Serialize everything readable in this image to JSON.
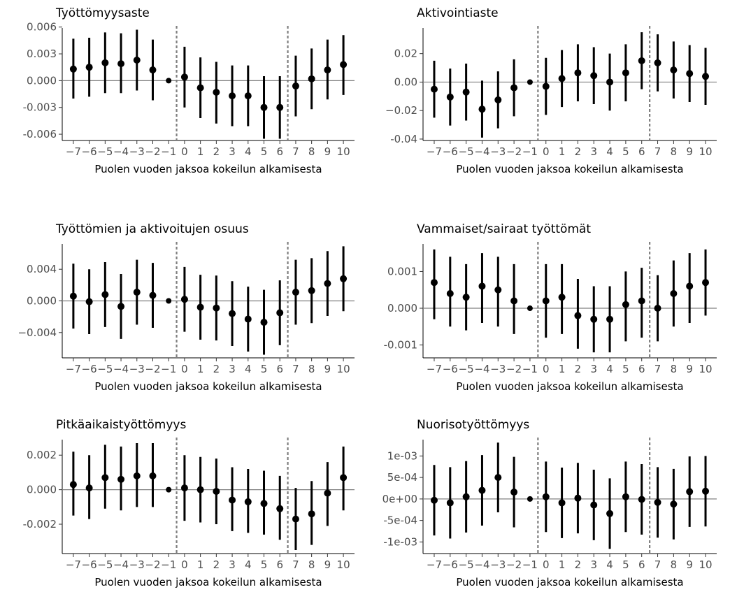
{
  "chart_data": [
    {
      "type": "scatter",
      "title": "Työttömyysaste",
      "xlabel": "Puolen vuoden jaksoa kokeilun alkamisesta",
      "ylabel": "",
      "x": [
        -7,
        -6,
        -5,
        -4,
        -3,
        -2,
        -1,
        0,
        1,
        2,
        3,
        4,
        5,
        6,
        7,
        8,
        9,
        10
      ],
      "xtick_labels": [
        "−7",
        "−6",
        "−5",
        "−4",
        "−3",
        "−2",
        "−1",
        "0",
        "1",
        "2",
        "3",
        "4",
        "5",
        "6",
        "7",
        "8",
        "9",
        "10"
      ],
      "estimate": [
        0.0013,
        0.0015,
        0.002,
        0.0019,
        0.0023,
        0.0012,
        0.0,
        0.0004,
        -0.0008,
        -0.0013,
        -0.0017,
        -0.0017,
        -0.003,
        -0.003,
        -0.0006,
        0.0002,
        0.0012,
        0.0018
      ],
      "ci_low": [
        -0.002,
        -0.0018,
        -0.0014,
        -0.0014,
        -0.0011,
        -0.0022,
        0.0,
        -0.003,
        -0.0042,
        -0.0048,
        -0.0051,
        -0.0051,
        -0.0065,
        -0.0065,
        -0.004,
        -0.0032,
        -0.0021,
        -0.0016
      ],
      "ci_high": [
        0.0047,
        0.0048,
        0.0054,
        0.0053,
        0.0057,
        0.0046,
        0.0,
        0.0038,
        0.0026,
        0.0021,
        0.0017,
        0.0017,
        0.0005,
        0.0005,
        0.0028,
        0.0036,
        0.0046,
        0.0051
      ],
      "yticks": [
        0.006,
        0.003,
        0.0,
        -0.003,
        -0.006
      ],
      "ytick_labels": [
        "0.006",
        "0.003",
        "0.000",
        "-0.003",
        "-0.006"
      ],
      "ylim": [
        -0.0067,
        0.0059
      ],
      "xlim": [
        -7.7,
        10.7
      ],
      "vlines": [
        -0.5,
        6.5
      ],
      "hline": 0
    },
    {
      "type": "scatter",
      "title": "Aktivointiaste",
      "xlabel": "Puolen vuoden jaksoa kokeilun alkamisesta",
      "ylabel": "",
      "x": [
        -7,
        -6,
        -5,
        -4,
        -3,
        -2,
        -1,
        0,
        1,
        2,
        3,
        4,
        5,
        6,
        7,
        8,
        9,
        10
      ],
      "xtick_labels": [
        "−7",
        "−6",
        "−5",
        "−4",
        "−3",
        "−2",
        "−1",
        "0",
        "1",
        "2",
        "3",
        "4",
        "5",
        "6",
        "7",
        "8",
        "9",
        "10"
      ],
      "estimate": [
        -0.005,
        -0.0105,
        -0.007,
        -0.019,
        -0.0125,
        -0.004,
        0.0,
        -0.003,
        0.0025,
        0.0065,
        0.0045,
        0.0,
        0.0065,
        0.015,
        0.0135,
        0.0085,
        0.006,
        0.004
      ],
      "ci_low": [
        -0.025,
        -0.0305,
        -0.027,
        -0.039,
        -0.0325,
        -0.024,
        0.0,
        -0.023,
        -0.0175,
        -0.0135,
        -0.0155,
        -0.02,
        -0.0135,
        -0.005,
        -0.0065,
        -0.0115,
        -0.014,
        -0.016
      ],
      "ci_high": [
        0.015,
        0.0095,
        0.013,
        0.001,
        0.0075,
        0.016,
        0.0,
        0.017,
        0.0225,
        0.0265,
        0.0245,
        0.02,
        0.0265,
        0.035,
        0.0335,
        0.0285,
        0.026,
        0.024
      ],
      "yticks": [
        0.02,
        0.0,
        -0.02,
        -0.04
      ],
      "ytick_labels": [
        "0.02",
        "0.00",
        "−0.02",
        "-0.04"
      ],
      "ylim": [
        -0.041,
        0.038
      ],
      "xlim": [
        -7.7,
        10.7
      ],
      "vlines": [
        -0.5,
        6.5
      ],
      "hline": 0
    },
    {
      "type": "scatter",
      "title": "Työttömien ja aktivoitujen osuus",
      "xlabel": "Puolen vuoden jaksoa kokeilun alkamisesta",
      "ylabel": "",
      "x": [
        -7,
        -6,
        -5,
        -4,
        -3,
        -2,
        -1,
        0,
        1,
        2,
        3,
        4,
        5,
        6,
        7,
        8,
        9,
        10
      ],
      "xtick_labels": [
        "−7",
        "−6",
        "−5",
        "−4",
        "−3",
        "−2",
        "−1",
        "0",
        "1",
        "2",
        "3",
        "4",
        "5",
        "6",
        "7",
        "8",
        "9",
        "10"
      ],
      "estimate": [
        0.0006,
        -0.0001,
        0.0008,
        -0.0007,
        0.0011,
        0.0007,
        0.0,
        0.0002,
        -0.0008,
        -0.0009,
        -0.0016,
        -0.0023,
        -0.0027,
        -0.0015,
        0.0011,
        0.0013,
        0.0022,
        0.0028
      ],
      "ci_low": [
        -0.0035,
        -0.0042,
        -0.0033,
        -0.0048,
        -0.003,
        -0.0034,
        0.0,
        -0.0039,
        -0.0049,
        -0.005,
        -0.0057,
        -0.0064,
        -0.0068,
        -0.0056,
        -0.003,
        -0.0028,
        -0.0019,
        -0.0013
      ],
      "ci_high": [
        0.0047,
        0.004,
        0.0049,
        0.0034,
        0.0052,
        0.0048,
        0.0,
        0.0043,
        0.0033,
        0.0032,
        0.0025,
        0.0018,
        0.0014,
        0.0026,
        0.0052,
        0.0054,
        0.0063,
        0.0069
      ],
      "yticks": [
        0.004,
        0.0,
        -0.004
      ],
      "ytick_labels": [
        "0.004",
        "0.000",
        "−0.004"
      ],
      "ylim": [
        -0.0072,
        0.0072
      ],
      "xlim": [
        -7.7,
        10.7
      ],
      "vlines": [
        -0.5,
        6.5
      ],
      "hline": 0
    },
    {
      "type": "scatter",
      "title": "Vammaiset/sairaat työttömät",
      "xlabel": "Puolen vuoden jaksoa kokeilun alkamisesta",
      "ylabel": "",
      "x": [
        -7,
        -6,
        -5,
        -4,
        -3,
        -2,
        -1,
        0,
        1,
        2,
        3,
        4,
        5,
        6,
        7,
        8,
        9,
        10
      ],
      "xtick_labels": [
        "−7",
        "−6",
        "−5",
        "−4",
        "−3",
        "−2",
        "−1",
        "0",
        "1",
        "2",
        "3",
        "4",
        "5",
        "6",
        "7",
        "8",
        "9",
        "10"
      ],
      "estimate": [
        0.0007,
        0.0004,
        0.0003,
        0.0006,
        0.0005,
        0.0002,
        0.0,
        0.0002,
        0.0003,
        -0.0002,
        -0.0003,
        -0.0003,
        0.0001,
        0.0002,
        0.0,
        0.0004,
        0.0006,
        0.0007
      ],
      "ci_low": [
        -0.0003,
        -0.0005,
        -0.0006,
        -0.0004,
        -0.0005,
        -0.0007,
        0.0,
        -0.0008,
        -0.0007,
        -0.0011,
        -0.0012,
        -0.0012,
        -0.0009,
        -0.0008,
        -0.0009,
        -0.0005,
        -0.0004,
        -0.0002
      ],
      "ci_high": [
        0.0016,
        0.0014,
        0.0012,
        0.0015,
        0.0014,
        0.0012,
        0.0,
        0.0012,
        0.0012,
        0.0008,
        0.0006,
        0.0006,
        0.001,
        0.0011,
        0.0009,
        0.0013,
        0.0015,
        0.0016
      ],
      "yticks": [
        0.001,
        0.0,
        -0.001
      ],
      "ytick_labels": [
        "0.001",
        "0.000",
        "-0.001"
      ],
      "ylim": [
        -0.00135,
        0.00175
      ],
      "xlim": [
        -7.7,
        10.7
      ],
      "vlines": [
        -0.5,
        6.5
      ],
      "hline": 0
    },
    {
      "type": "scatter",
      "title": "Pitkäaikaistyöttömyys",
      "xlabel": "Puolen vuoden jaksoa kokeilun alkamisesta",
      "ylabel": "",
      "x": [
        -7,
        -6,
        -5,
        -4,
        -3,
        -2,
        -1,
        0,
        1,
        2,
        3,
        4,
        5,
        6,
        7,
        8,
        9,
        10
      ],
      "xtick_labels": [
        "−7",
        "−6",
        "−5",
        "−4",
        "−3",
        "−2",
        "−1",
        "0",
        "1",
        "2",
        "3",
        "4",
        "5",
        "6",
        "7",
        "8",
        "9",
        "10"
      ],
      "estimate": [
        0.0003,
        0.0001,
        0.0007,
        0.0006,
        0.0008,
        0.0008,
        0.0,
        0.0001,
        0.0,
        -0.0001,
        -0.0006,
        -0.0007,
        -0.0008,
        -0.0011,
        -0.0017,
        -0.0014,
        -0.0002,
        0.0007
      ],
      "ci_low": [
        -0.0015,
        -0.0017,
        -0.0011,
        -0.0012,
        -0.001,
        -0.001,
        0.0,
        -0.0018,
        -0.0019,
        -0.002,
        -0.0024,
        -0.0025,
        -0.0026,
        -0.0029,
        -0.0035,
        -0.0032,
        -0.0021,
        -0.0012
      ],
      "ci_high": [
        0.0022,
        0.002,
        0.0026,
        0.0025,
        0.0027,
        0.0027,
        0.0,
        0.002,
        0.0019,
        0.0018,
        0.0013,
        0.0012,
        0.0011,
        0.0008,
        0.0001,
        0.0005,
        0.0016,
        0.0025
      ],
      "yticks": [
        0.002,
        0.0,
        -0.002
      ],
      "ytick_labels": [
        "0.002",
        "0.000",
        "-0.002"
      ],
      "ylim": [
        -0.0037,
        0.0029
      ],
      "xlim": [
        -7.7,
        10.7
      ],
      "vlines": [
        -0.5,
        6.5
      ],
      "hline": 0
    },
    {
      "type": "scatter",
      "title": "Nuorisotyöttömyys",
      "xlabel": "Puolen vuoden jaksoa kokeilun alkamisesta",
      "ylabel": "",
      "x": [
        -7,
        -6,
        -5,
        -4,
        -3,
        -2,
        -1,
        0,
        1,
        2,
        3,
        4,
        5,
        6,
        7,
        8,
        9,
        10
      ],
      "xtick_labels": [
        "−7",
        "−6",
        "−5",
        "−4",
        "−3",
        "−2",
        "−1",
        "0",
        "1",
        "2",
        "3",
        "4",
        "5",
        "6",
        "7",
        "8",
        "9",
        "10"
      ],
      "estimate": [
        -3e-05,
        -9e-05,
        5e-05,
        0.0002,
        0.0005,
        0.00016,
        0.0,
        5e-05,
        -9e-05,
        2e-05,
        -0.00014,
        -0.00034,
        5e-05,
        -1e-05,
        -8e-05,
        -0.00012,
        0.00017,
        0.00018
      ],
      "ci_low": [
        -0.00085,
        -0.00092,
        -0.00078,
        -0.00062,
        -0.00031,
        -0.00066,
        0.0,
        -0.00077,
        -0.00091,
        -0.0008,
        -0.00096,
        -0.00116,
        -0.00077,
        -0.00083,
        -0.0009,
        -0.00094,
        -0.00065,
        -0.00064
      ],
      "ci_high": [
        0.00079,
        0.00074,
        0.00088,
        0.00102,
        0.00131,
        0.00098,
        0.0,
        0.00087,
        0.00073,
        0.00084,
        0.00068,
        0.00048,
        0.00087,
        0.00081,
        0.00074,
        0.0007,
        0.00099,
        0.001
      ],
      "yticks": [
        0.001,
        0.0005,
        0.0,
        -0.0005,
        -0.001
      ],
      "ytick_labels": [
        "1e-03",
        "5e-04",
        "0e+00",
        "-5e-04",
        "-1e-03"
      ],
      "ylim": [
        -0.00127,
        0.00138
      ],
      "xlim": [
        -7.7,
        10.7
      ],
      "vlines": [
        -0.5,
        6.5
      ],
      "hline": 0
    }
  ]
}
